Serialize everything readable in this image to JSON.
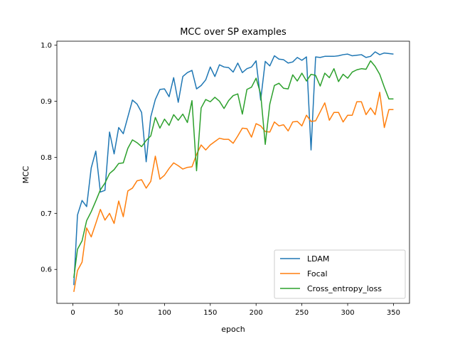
{
  "chart_data": {
    "type": "line",
    "title": "MCC over SP examples",
    "xlabel": "epoch",
    "ylabel": "MCC",
    "xlim": [
      -17.5,
      367.5
    ],
    "ylim": [
      0.5395,
      1.007
    ],
    "xticks": [
      0,
      50,
      100,
      150,
      200,
      250,
      300,
      350
    ],
    "yticks": [
      0.6,
      0.7,
      0.8,
      0.9,
      1.0
    ],
    "ytick_labels": [
      "0.6",
      "0.7",
      "0.8",
      "0.9",
      "1.0"
    ],
    "legend_position": "lower-right",
    "grid": false,
    "x": [
      1,
      5,
      10,
      15,
      20,
      25,
      30,
      35,
      40,
      45,
      50,
      55,
      60,
      65,
      70,
      75,
      80,
      85,
      90,
      95,
      100,
      105,
      110,
      115,
      120,
      125,
      130,
      135,
      140,
      145,
      150,
      155,
      160,
      165,
      170,
      175,
      180,
      185,
      190,
      195,
      200,
      205,
      210,
      215,
      220,
      225,
      230,
      235,
      240,
      245,
      250,
      255,
      260,
      265,
      270,
      275,
      280,
      285,
      290,
      295,
      300,
      305,
      310,
      315,
      320,
      325,
      330,
      335,
      340,
      345,
      350
    ],
    "series": [
      {
        "name": "LDAM",
        "color": "#1f77b4",
        "values": [
          0.572,
          0.697,
          0.723,
          0.712,
          0.781,
          0.811,
          0.738,
          0.741,
          0.845,
          0.806,
          0.853,
          0.842,
          0.872,
          0.902,
          0.895,
          0.88,
          0.792,
          0.872,
          0.903,
          0.921,
          0.922,
          0.908,
          0.942,
          0.898,
          0.944,
          0.951,
          0.955,
          0.922,
          0.928,
          0.938,
          0.961,
          0.944,
          0.965,
          0.961,
          0.96,
          0.952,
          0.968,
          0.951,
          0.958,
          0.961,
          0.972,
          0.902,
          0.971,
          0.963,
          0.981,
          0.975,
          0.974,
          0.968,
          0.97,
          0.978,
          0.973,
          0.979,
          0.813,
          0.979,
          0.978,
          0.98,
          0.98,
          0.98,
          0.981,
          0.983,
          0.984,
          0.981,
          0.982,
          0.983,
          0.978,
          0.98,
          0.988,
          0.983,
          0.986,
          0.985,
          0.984
        ]
      },
      {
        "name": "Focal",
        "color": "#ff7f0e",
        "values": [
          0.56,
          0.598,
          0.613,
          0.674,
          0.658,
          0.682,
          0.707,
          0.688,
          0.7,
          0.682,
          0.722,
          0.694,
          0.74,
          0.745,
          0.758,
          0.76,
          0.745,
          0.757,
          0.802,
          0.761,
          0.768,
          0.78,
          0.79,
          0.785,
          0.779,
          0.782,
          0.783,
          0.805,
          0.822,
          0.813,
          0.822,
          0.828,
          0.834,
          0.832,
          0.832,
          0.825,
          0.838,
          0.852,
          0.851,
          0.836,
          0.86,
          0.856,
          0.846,
          0.845,
          0.863,
          0.856,
          0.858,
          0.847,
          0.863,
          0.864,
          0.856,
          0.875,
          0.864,
          0.865,
          0.881,
          0.897,
          0.866,
          0.88,
          0.88,
          0.863,
          0.875,
          0.875,
          0.899,
          0.899,
          0.876,
          0.888,
          0.876,
          0.916,
          0.853,
          0.885,
          0.885
        ]
      },
      {
        "name": "Cross_entropy_loss",
        "color": "#2ca02c",
        "values": [
          0.585,
          0.636,
          0.651,
          0.687,
          0.703,
          0.722,
          0.742,
          0.754,
          0.771,
          0.778,
          0.789,
          0.79,
          0.816,
          0.831,
          0.826,
          0.819,
          0.83,
          0.838,
          0.871,
          0.852,
          0.868,
          0.857,
          0.876,
          0.866,
          0.877,
          0.862,
          0.901,
          0.776,
          0.888,
          0.903,
          0.899,
          0.907,
          0.9,
          0.887,
          0.901,
          0.91,
          0.913,
          0.877,
          0.921,
          0.925,
          0.941,
          0.913,
          0.823,
          0.895,
          0.928,
          0.932,
          0.923,
          0.922,
          0.947,
          0.936,
          0.95,
          0.936,
          0.948,
          0.946,
          0.927,
          0.95,
          0.942,
          0.958,
          0.935,
          0.948,
          0.941,
          0.952,
          0.956,
          0.958,
          0.957,
          0.972,
          0.962,
          0.948,
          0.925,
          0.904,
          0.904
        ]
      }
    ]
  }
}
